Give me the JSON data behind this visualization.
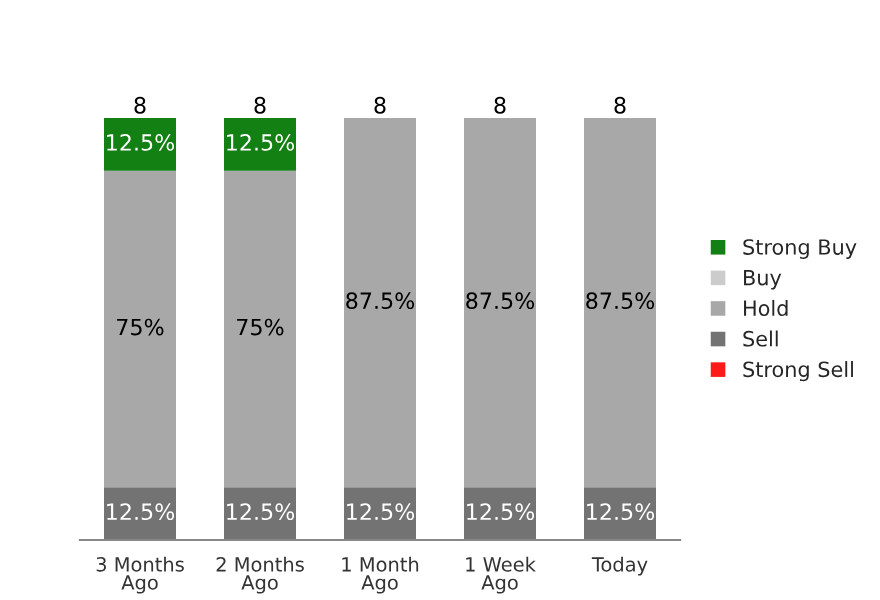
{
  "chart_data": {
    "type": "bar",
    "stacked": true,
    "categories": [
      "3 Months\nAgo",
      "2 Months\nAgo",
      "1 Month\nAgo",
      "1 Week\nAgo",
      "Today"
    ],
    "series": [
      {
        "name": "Strong Sell",
        "color": "#ff1a1a",
        "values": [
          0,
          0,
          0,
          0,
          0
        ],
        "value_labels": [
          null,
          null,
          null,
          null,
          null
        ]
      },
      {
        "name": "Sell",
        "color": "#737373",
        "values": [
          12.5,
          12.5,
          12.5,
          12.5,
          12.5
        ],
        "value_labels": [
          "12.5%",
          "12.5%",
          "12.5%",
          "12.5%",
          "12.5%"
        ]
      },
      {
        "name": "Hold",
        "color": "#a8a8a8",
        "values": [
          75,
          75,
          87.5,
          87.5,
          87.5
        ],
        "value_labels": [
          "75%",
          "75%",
          "87.5%",
          "87.5%",
          "87.5%"
        ]
      },
      {
        "name": "Buy",
        "color": "#cccccc",
        "values": [
          0,
          0,
          0,
          0,
          0
        ],
        "value_labels": [
          null,
          null,
          null,
          null,
          null
        ]
      },
      {
        "name": "Strong Buy",
        "color": "#138013",
        "values": [
          12.5,
          12.5,
          0,
          0,
          0
        ],
        "value_labels": [
          "12.5%",
          "12.5%",
          null,
          null,
          null
        ]
      }
    ],
    "annotations": [
      {
        "text": "8",
        "x": "3 Months\nAgo",
        "y": 100
      },
      {
        "text": "8",
        "x": "2 Months\nAgo",
        "y": 100
      },
      {
        "text": "8",
        "x": "1 Month\nAgo",
        "y": 100
      },
      {
        "text": "8",
        "x": "1 Week\nAgo",
        "y": 100
      },
      {
        "text": "8",
        "x": "Today",
        "y": 100
      }
    ],
    "legend": "right",
    "grid": false
  }
}
